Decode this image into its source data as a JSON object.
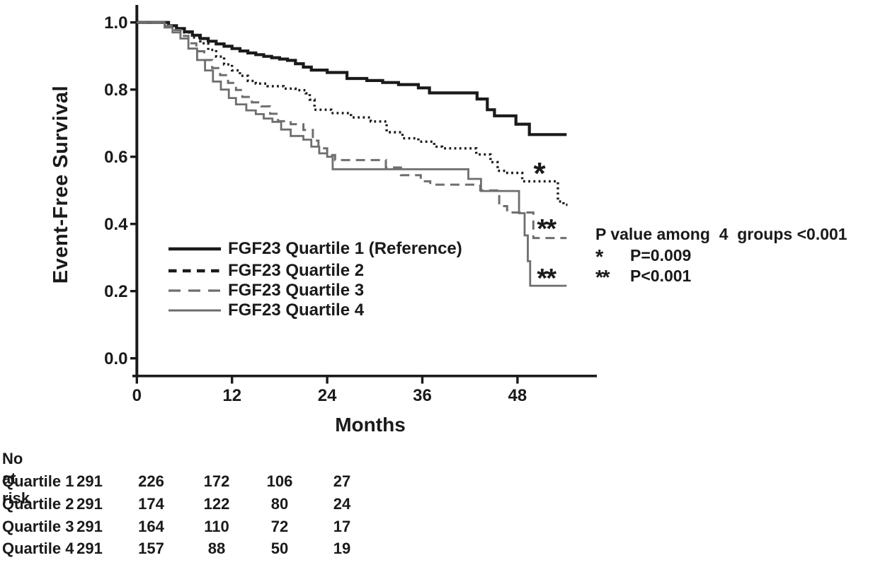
{
  "chart_data": {
    "type": "line",
    "subtype": "kaplan-meier-step",
    "title": "",
    "xlabel": "Months",
    "ylabel": "Event-Free Survival",
    "x_ticks": [
      0,
      12,
      24,
      36,
      48
    ],
    "y_ticks": [
      "1.0",
      "0.8",
      "0.6",
      "0.4",
      "0.2",
      "0.0"
    ],
    "y_tick_values": [
      1.0,
      0.8,
      0.6,
      0.4,
      0.2,
      0.0
    ],
    "xlim": [
      0,
      58
    ],
    "ylim": [
      0.0,
      1.0
    ],
    "grid": false,
    "legend_position": "inside-lower-left",
    "colors": {
      "black": "#1a1a1a",
      "gray": "#6e6e6e"
    },
    "series": [
      {
        "name": "FGF23 Quartile 1 (Reference)",
        "color": "#1a1a1a",
        "style": "solid",
        "width": 4.2,
        "points": [
          [
            0,
            1.0
          ],
          [
            3,
            1.0
          ],
          [
            4,
            0.99
          ],
          [
            5,
            0.982
          ],
          [
            6,
            0.972
          ],
          [
            7,
            0.962
          ],
          [
            8,
            0.952
          ],
          [
            9,
            0.944
          ],
          [
            10,
            0.936
          ],
          [
            11,
            0.929
          ],
          [
            12,
            0.922
          ],
          [
            13,
            0.915
          ],
          [
            14,
            0.909
          ],
          [
            15,
            0.904
          ],
          [
            16,
            0.899
          ],
          [
            17,
            0.895
          ],
          [
            18,
            0.891
          ],
          [
            19,
            0.887
          ],
          [
            20,
            0.877
          ],
          [
            21,
            0.867
          ],
          [
            22,
            0.858
          ],
          [
            24,
            0.851
          ],
          [
            26.5,
            0.833
          ],
          [
            29,
            0.827
          ],
          [
            31,
            0.821
          ],
          [
            33,
            0.815
          ],
          [
            35.5,
            0.805
          ],
          [
            36.9,
            0.79
          ],
          [
            42.9,
            0.772
          ],
          [
            44.2,
            0.74
          ],
          [
            45.1,
            0.722
          ],
          [
            47.8,
            0.697
          ],
          [
            49.5,
            0.666
          ],
          [
            54.2,
            0.666
          ]
        ]
      },
      {
        "name": "FGF23 Quartile 2",
        "color": "#1a1a1a",
        "style": "dotted",
        "width": 3.4,
        "points": [
          [
            0,
            1.0
          ],
          [
            3,
            1.0
          ],
          [
            4,
            0.99
          ],
          [
            5,
            0.982
          ],
          [
            6,
            0.97
          ],
          [
            7,
            0.955
          ],
          [
            8,
            0.938
          ],
          [
            9,
            0.918
          ],
          [
            10,
            0.898
          ],
          [
            11,
            0.875
          ],
          [
            12,
            0.857
          ],
          [
            13,
            0.841
          ],
          [
            14,
            0.826
          ],
          [
            15,
            0.818
          ],
          [
            16.5,
            0.81
          ],
          [
            18.5,
            0.803
          ],
          [
            20,
            0.798
          ],
          [
            21.3,
            0.789
          ],
          [
            21.8,
            0.77
          ],
          [
            22.4,
            0.74
          ],
          [
            24.5,
            0.73
          ],
          [
            27,
            0.717
          ],
          [
            29.5,
            0.705
          ],
          [
            31.5,
            0.673
          ],
          [
            33.5,
            0.655
          ],
          [
            35.5,
            0.645
          ],
          [
            37.5,
            0.63
          ],
          [
            38.5,
            0.625
          ],
          [
            42.8,
            0.607
          ],
          [
            44.6,
            0.584
          ],
          [
            45.5,
            0.558
          ],
          [
            46.5,
            0.552
          ],
          [
            48.6,
            0.527
          ],
          [
            53.1,
            0.467
          ],
          [
            53.8,
            0.457
          ],
          [
            54.3,
            0.457
          ]
        ]
      },
      {
        "name": "FGF23 Quartile 3",
        "color": "#6e6e6e",
        "style": "dashed",
        "width": 3.0,
        "points": [
          [
            0,
            1.0
          ],
          [
            2.5,
            1.0
          ],
          [
            3.5,
            0.99
          ],
          [
            4.5,
            0.977
          ],
          [
            5.5,
            0.96
          ],
          [
            6.5,
            0.938
          ],
          [
            7.5,
            0.914
          ],
          [
            8.5,
            0.888
          ],
          [
            9.5,
            0.864
          ],
          [
            10.5,
            0.843
          ],
          [
            11.5,
            0.82
          ],
          [
            12.5,
            0.799
          ],
          [
            13.3,
            0.778
          ],
          [
            14.5,
            0.762
          ],
          [
            15.7,
            0.75
          ],
          [
            16.8,
            0.728
          ],
          [
            17.8,
            0.706
          ],
          [
            19.4,
            0.697
          ],
          [
            21,
            0.68
          ],
          [
            22.2,
            0.648
          ],
          [
            22.9,
            0.625
          ],
          [
            24,
            0.605
          ],
          [
            25,
            0.59
          ],
          [
            31.4,
            0.568
          ],
          [
            33.3,
            0.545
          ],
          [
            35.8,
            0.527
          ],
          [
            37,
            0.517
          ],
          [
            43.3,
            0.5
          ],
          [
            45.7,
            0.453
          ],
          [
            46.7,
            0.434
          ],
          [
            50,
            0.358
          ],
          [
            54.2,
            0.358
          ]
        ]
      },
      {
        "name": "FGF23 Quartile 4",
        "color": "#6e6e6e",
        "style": "solid",
        "width": 2.8,
        "points": [
          [
            0,
            1.0
          ],
          [
            2.5,
            1.0
          ],
          [
            3.5,
            0.985
          ],
          [
            4.5,
            0.97
          ],
          [
            5.5,
            0.952
          ],
          [
            6.5,
            0.922
          ],
          [
            7.6,
            0.888
          ],
          [
            8.6,
            0.857
          ],
          [
            9.6,
            0.824
          ],
          [
            10.6,
            0.8
          ],
          [
            11.6,
            0.775
          ],
          [
            12.5,
            0.756
          ],
          [
            13.8,
            0.738
          ],
          [
            15,
            0.727
          ],
          [
            16,
            0.714
          ],
          [
            17.1,
            0.704
          ],
          [
            18.2,
            0.681
          ],
          [
            19.4,
            0.662
          ],
          [
            21,
            0.651
          ],
          [
            22,
            0.63
          ],
          [
            23,
            0.61
          ],
          [
            24,
            0.6
          ],
          [
            24.7,
            0.563
          ],
          [
            41.8,
            0.534
          ],
          [
            43.4,
            0.498
          ],
          [
            48.2,
            0.432
          ],
          [
            48.9,
            0.366
          ],
          [
            49.3,
            0.289
          ],
          [
            49.6,
            0.216
          ],
          [
            54.2,
            0.216
          ]
        ]
      }
    ],
    "annotations": [
      {
        "text": "*",
        "month": 50.7,
        "value": 0.566,
        "size": 44
      },
      {
        "text": "**",
        "month": 51.6,
        "value": 0.399,
        "size": 38
      },
      {
        "text": "**",
        "month": 51.6,
        "value": 0.252,
        "size": 38
      }
    ]
  },
  "pvalue_block": {
    "lines": [
      {
        "star": "",
        "text": "P value among  4  groups <0.001"
      },
      {
        "star": "*",
        "text": "P=0.009"
      },
      {
        "star": "**",
        "text": "P<0.001"
      }
    ]
  },
  "risk_table": {
    "title": "No at risk",
    "time_points": [
      0,
      12,
      24,
      36,
      48
    ],
    "rows": [
      {
        "label": "Quartile 1",
        "values": [
          "291",
          "226",
          "172",
          "106",
          "27"
        ]
      },
      {
        "label": "Quartile 2",
        "values": [
          "291",
          "174",
          "122",
          "80",
          "24"
        ]
      },
      {
        "label": "Quartile 3",
        "values": [
          "291",
          "164",
          "110",
          "72",
          "17"
        ]
      },
      {
        "label": "Quartile 4",
        "values": [
          "291",
          "157",
          "88",
          "50",
          "19"
        ]
      }
    ]
  }
}
